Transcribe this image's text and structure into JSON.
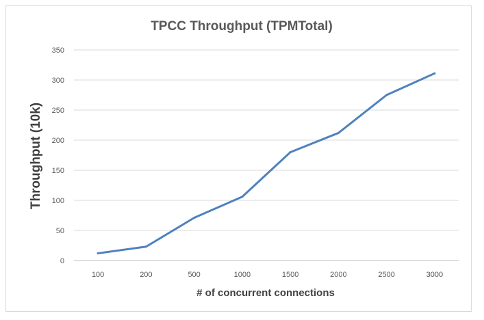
{
  "chart_data": {
    "type": "line",
    "title": "TPCC Throughput  (TPMTotal)",
    "xlabel": "# of concurrent connections",
    "ylabel": "Throughput  (10k)",
    "categories": [
      "100",
      "200",
      "500",
      "1000",
      "1500",
      "2000",
      "2500",
      "3000"
    ],
    "series": [
      {
        "values": [
          12,
          23,
          71,
          106,
          180,
          212,
          275,
          311
        ]
      }
    ],
    "ylim": [
      0,
      350
    ],
    "yticks": [
      0,
      50,
      100,
      150,
      200,
      250,
      300,
      350
    ],
    "grid": true,
    "legend": "none",
    "colors": {
      "line": "#4f81bd",
      "grid": "#d9d9d9",
      "axis": "#bfbfbf"
    }
  }
}
